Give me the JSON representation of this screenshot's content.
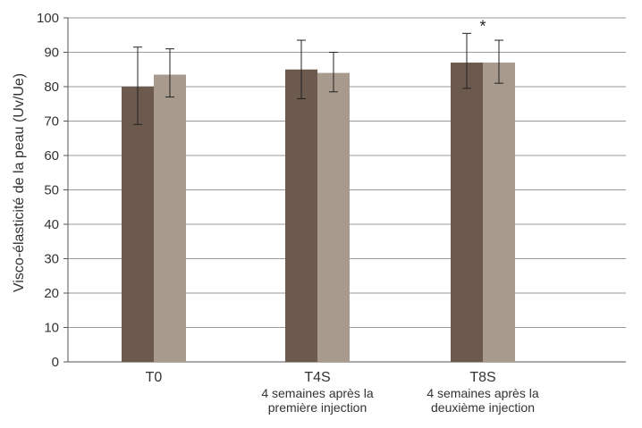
{
  "chart_data": {
    "type": "bar",
    "ylabel": "Visco-élasticité de la peau (Uv/Ue)",
    "xlabel": "",
    "ylim": [
      0,
      100
    ],
    "yticks": [
      0,
      10,
      20,
      30,
      40,
      50,
      60,
      70,
      80,
      90,
      100
    ],
    "grid": true,
    "legend": "none",
    "categories": [
      {
        "label": "T0",
        "sublabel": []
      },
      {
        "label": "T4S",
        "sublabel": [
          "4 semaines après la",
          "première injection"
        ]
      },
      {
        "label": "T8S",
        "sublabel": [
          "4 semaines après la",
          "deuxième injection"
        ]
      }
    ],
    "series": [
      {
        "color": "#6b5a4d",
        "values": [
          80,
          85,
          87
        ],
        "error_low": [
          69,
          76.5,
          79.5
        ],
        "error_high": [
          91.5,
          93.5,
          95.5
        ]
      },
      {
        "color": "#a89a8c",
        "values": [
          83.5,
          84,
          87
        ],
        "error_low": [
          77,
          78.5,
          81
        ],
        "error_high": [
          91,
          90,
          93.5
        ]
      }
    ],
    "annotations": [
      {
        "text": "*",
        "category_index": 2,
        "series_index": 0
      }
    ]
  }
}
